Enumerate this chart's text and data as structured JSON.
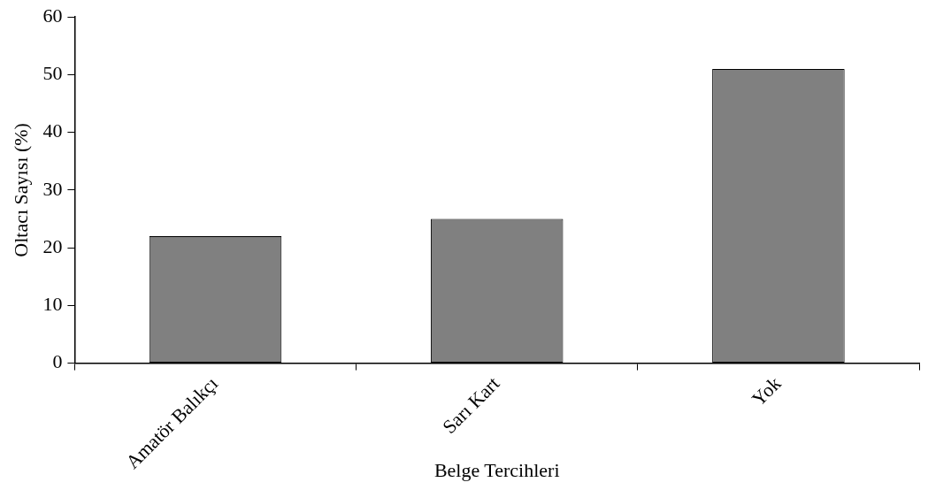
{
  "chart_data": {
    "type": "bar",
    "xlabel": "Belge Tercihleri",
    "ylabel": "Oltacı Sayısı (%)",
    "categories": [
      "Amatör Balıkçı",
      "Sarı Kart",
      "Yok"
    ],
    "values": [
      22,
      25,
      51
    ],
    "color": "#808080",
    "ylim": [
      0,
      60
    ],
    "yticks": [
      0,
      10,
      20,
      30,
      40,
      50,
      60
    ],
    "grid": false,
    "legend": false
  }
}
